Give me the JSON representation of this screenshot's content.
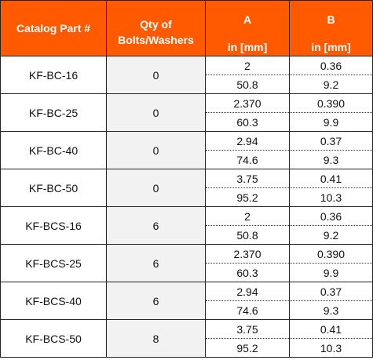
{
  "header": {
    "part": "Catalog Part #",
    "qty_line1": "Qty of",
    "qty_line2": "Bolts/Washers",
    "a_label": "A",
    "b_label": "B",
    "a_unit": "in [mm]",
    "b_unit": "in [mm]"
  },
  "rows": [
    {
      "part": "KF-BC-16",
      "qty": "0",
      "a_in": "2",
      "b_in": "0.36",
      "a_mm": "50.8",
      "b_mm": "9.2"
    },
    {
      "part": "KF-BC-25",
      "qty": "0",
      "a_in": "2.370",
      "b_in": "0.390",
      "a_mm": "60.3",
      "b_mm": "9.9"
    },
    {
      "part": "KF-BC-40",
      "qty": "0",
      "a_in": "2.94",
      "b_in": "0.37",
      "a_mm": "74.6",
      "b_mm": "9.3"
    },
    {
      "part": "KF-BC-50",
      "qty": "0",
      "a_in": "3.75",
      "b_in": "0.41",
      "a_mm": "95.2",
      "b_mm": "10.3"
    },
    {
      "part": "KF-BCS-16",
      "qty": "6",
      "a_in": "2",
      "b_in": "0.36",
      "a_mm": "50.8",
      "b_mm": "9.2"
    },
    {
      "part": "KF-BCS-25",
      "qty": "6",
      "a_in": "2.370",
      "b_in": "0.390",
      "a_mm": "60.3",
      "b_mm": "9.9"
    },
    {
      "part": "KF-BCS-40",
      "qty": "6",
      "a_in": "2.94",
      "b_in": "0.37",
      "a_mm": "74.6",
      "b_mm": "9.3"
    },
    {
      "part": "KF-BCS-50",
      "qty": "8",
      "a_in": "3.75",
      "b_in": "0.41",
      "a_mm": "95.2",
      "b_mm": "10.3"
    }
  ]
}
